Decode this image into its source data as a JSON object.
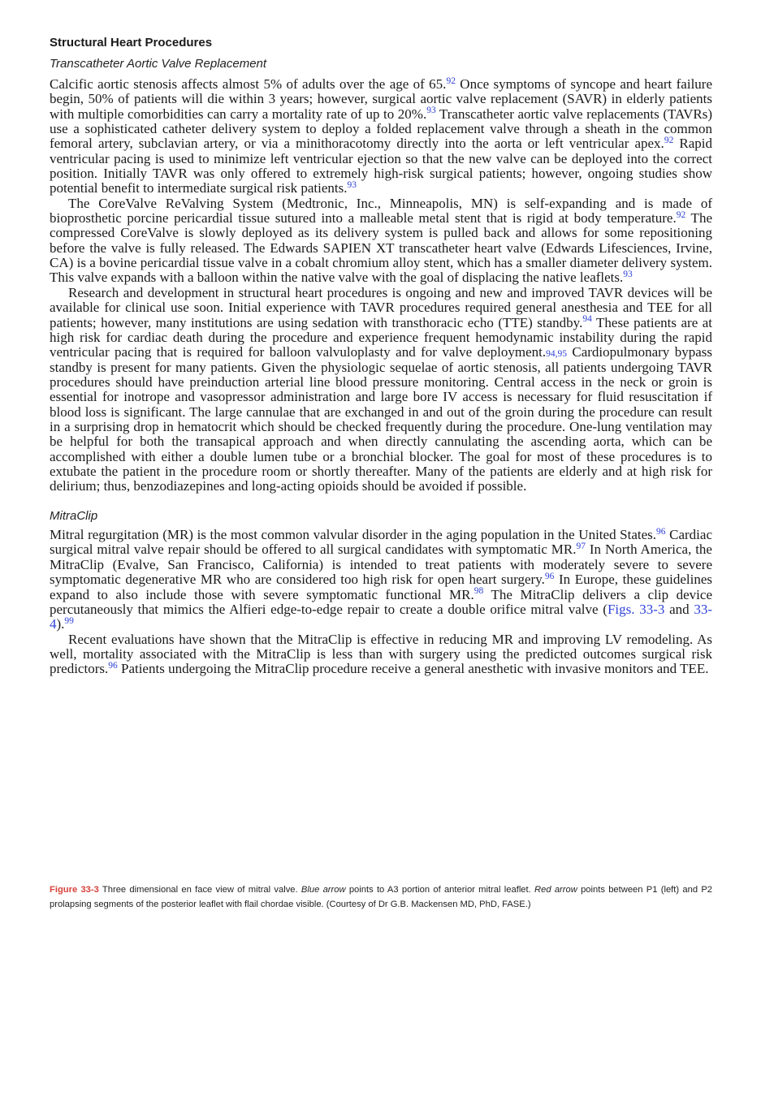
{
  "colors": {
    "text": "#1a1a1a",
    "link_blue": "#2f42d8",
    "figure_label_red": "#d8423c"
  },
  "page": {
    "heading": "Structural Heart Procedures",
    "sections": [
      {
        "title": "Transcatheter Aortic Valve Replacement",
        "paragraphs": [
          {
            "segments": [
              {
                "text": "Calcific aortic stenosis affects almost 5% of adults over the age of 65."
              },
              {
                "citation": "92"
              },
              {
                "text": " Once symptoms of syncope and heart failure begin, 50% of patients will die within 3 years; however, surgical aortic valve replacement (SAVR) in elderly patients with multiple comorbidities can carry a mortality rate of up to 20%."
              },
              {
                "citation": "93"
              },
              {
                "text": " Transcatheter aortic valve replacements (TAVRs) use a sophisticated catheter delivery system to deploy a folded replacement valve through a sheath in the common femoral artery, subclavian artery, or via a minithoracotomy directly into the aorta or left ventricular apex."
              },
              {
                "citation": "92"
              },
              {
                "text": " Rapid ventricular pacing is used to minimize left ventricular ejection so that the new valve can be deployed into the correct position. Initially TAVR was only offered to extremely high-risk surgical patients; however, ongoing studies show potential benefit to intermediate surgical risk patients."
              },
              {
                "citation": "93"
              }
            ]
          },
          {
            "segments": [
              {
                "text": "The CoreValve ReValving System (Medtronic, Inc., Minneapolis, MN) is self-expanding and is made of bioprosthetic porcine pericardial tissue sutured into a malleable metal stent that is rigid at body temperature."
              },
              {
                "citation": "92"
              },
              {
                "text": " The compressed CoreValve is slowly deployed as its delivery system is pulled back and allows for some repositioning before the valve is fully released. The Edwards SAPIEN XT transcatheter heart valve (Edwards Lifesciences, Irvine, CA) is a bovine pericardial tissue valve in a cobalt chromium alloy stent, which has a smaller diameter delivery system. This valve expands with a balloon within the native valve with the goal of displacing the native leaflets."
              },
              {
                "citation": "93"
              }
            ]
          },
          {
            "segments": [
              {
                "text": "Research and development in structural heart procedures is ongoing and new and improved TAVR devices will be available for clinical use soon. Initial experience with TAVR procedures required general anesthesia and TEE for all patients; however, many institutions are using sedation with transthoracic echo (TTE) standby."
              },
              {
                "citation": "94"
              },
              {
                "text": " These patients are at high risk for cardiac death during the procedure and experience frequent hemodynamic instability during the rapid ventricular pacing that is required for balloon valvuloplasty and for valve deployment."
              },
              {
                "citation_baseline": "94,95"
              },
              {
                "text": " Cardiopulmonary bypass standby is present for many patients. Given the physiologic sequelae of aortic stenosis, all patients undergoing TAVR procedures should have preinduction arterial line blood pressure monitoring. Central access in the neck or groin is essential for inotrope and vasopressor administration and large bore IV access is necessary for fluid resuscitation if blood loss is significant. The large cannulae that are exchanged in and out of the groin during the procedure can result in a surprising drop in hematocrit which should be checked frequently during the procedure. One-lung ventilation may be helpful for both the transapical approach and when directly cannulating the ascending aorta, which can be accomplished with either a double lumen tube or a bronchial blocker. The goal for most of these procedures is to extubate the patient in the procedure room or shortly thereafter. Many of the patients are elderly and at high risk for delirium; thus, benzodiazepines and long-acting opioids should be avoided if possible."
              }
            ]
          }
        ]
      },
      {
        "title": "MitraClip",
        "paragraphs": [
          {
            "segments": [
              {
                "text": "Mitral regurgitation (MR) is the most common valvular disorder in the aging population in the United States."
              },
              {
                "citation": "96"
              },
              {
                "text": " Cardiac surgical mitral valve repair should be offered to all surgical candidates with symptomatic MR."
              },
              {
                "citation": "97"
              },
              {
                "text": " In North America, the MitraClip (Evalve, San Francisco, California) is intended to treat patients with moderately severe to severe symptomatic degenerative MR who are considered too high risk for open heart surgery."
              },
              {
                "citation": "96"
              },
              {
                "text": " In Europe, these guidelines expand to also include those with severe symptomatic functional MR."
              },
              {
                "citation": "98"
              },
              {
                "text": " The MitraClip delivers a clip device percutaneously that mimics the Alfieri edge-to-edge repair to create a double orifice mitral valve ("
              },
              {
                "figure_ref": "Figs. 33-3"
              },
              {
                "text": " and "
              },
              {
                "figure_ref": "33-4"
              },
              {
                "text": ")."
              },
              {
                "citation": "99"
              }
            ]
          },
          {
            "segments": [
              {
                "text": "Recent evaluations have shown that the MitraClip is effective in reducing MR and improving LV remodeling. As well, mortality associated with the MitraClip is less than with surgery using the predicted outcomes surgical risk predictors."
              },
              {
                "citation": "96"
              },
              {
                "text": " Patients undergoing the MitraClip procedure receive a general anesthetic with invasive monitors and TEE."
              }
            ]
          }
        ]
      }
    ],
    "figure_caption": {
      "segments": [
        {
          "label": "Figure 33-3"
        },
        {
          "text": " Three dimensional en face view of mitral valve. "
        },
        {
          "emphasis": "Blue arrow"
        },
        {
          "text": " points to A3 portion of anterior mitral leaflet. "
        },
        {
          "emphasis": "Red arrow"
        },
        {
          "text": " points between P1 (left) and P2 prolapsing segments of the posterior leaflet with flail chordae visible. (Courtesy of Dr G.B. Mackensen MD, PhD, FASE.)"
        }
      ]
    }
  }
}
